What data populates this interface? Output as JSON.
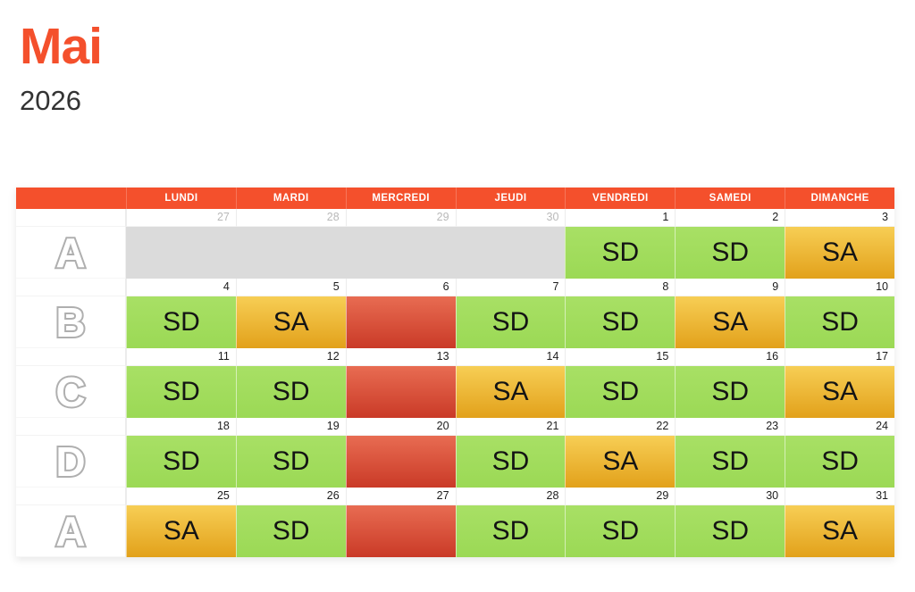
{
  "title": {
    "month": "Mai",
    "year": "2026"
  },
  "colors": {
    "accent": "#F4502C",
    "shift_day_green": "#A0DC5C",
    "shift_sa_gold_top": "#F7CE55",
    "shift_sa_gold_bottom": "#E2A11B",
    "off_red_top": "#E86C52",
    "off_red_bottom": "#CA3A27",
    "out_of_month_gray": "#DBDBDB"
  },
  "calendar": {
    "day_headers": [
      "LUNDI",
      "MARDI",
      "MERCREDI",
      "JEUDI",
      "VENDREDI",
      "SAMEDI",
      "DIMANCHE"
    ],
    "weeks": [
      {
        "letter": "A",
        "days": [
          {
            "date": "27",
            "out": true,
            "type": "gray",
            "label": ""
          },
          {
            "date": "28",
            "out": true,
            "type": "gray",
            "label": ""
          },
          {
            "date": "29",
            "out": true,
            "type": "gray",
            "label": ""
          },
          {
            "date": "30",
            "out": true,
            "type": "gray",
            "label": ""
          },
          {
            "date": "1",
            "out": false,
            "type": "sd",
            "label": "SD"
          },
          {
            "date": "2",
            "out": false,
            "type": "sd",
            "label": "SD"
          },
          {
            "date": "3",
            "out": false,
            "type": "sa",
            "label": "SA"
          }
        ]
      },
      {
        "letter": "B",
        "days": [
          {
            "date": "4",
            "out": false,
            "type": "sd",
            "label": "SD"
          },
          {
            "date": "5",
            "out": false,
            "type": "sa",
            "label": "SA"
          },
          {
            "date": "6",
            "out": false,
            "type": "red",
            "label": ""
          },
          {
            "date": "7",
            "out": false,
            "type": "sd",
            "label": "SD"
          },
          {
            "date": "8",
            "out": false,
            "type": "sd",
            "label": "SD"
          },
          {
            "date": "9",
            "out": false,
            "type": "sa",
            "label": "SA"
          },
          {
            "date": "10",
            "out": false,
            "type": "sd",
            "label": "SD"
          }
        ]
      },
      {
        "letter": "C",
        "days": [
          {
            "date": "11",
            "out": false,
            "type": "sd",
            "label": "SD"
          },
          {
            "date": "12",
            "out": false,
            "type": "sd",
            "label": "SD"
          },
          {
            "date": "13",
            "out": false,
            "type": "red",
            "label": ""
          },
          {
            "date": "14",
            "out": false,
            "type": "sa",
            "label": "SA"
          },
          {
            "date": "15",
            "out": false,
            "type": "sd",
            "label": "SD"
          },
          {
            "date": "16",
            "out": false,
            "type": "sd",
            "label": "SD"
          },
          {
            "date": "17",
            "out": false,
            "type": "sa",
            "label": "SA"
          }
        ]
      },
      {
        "letter": "D",
        "days": [
          {
            "date": "18",
            "out": false,
            "type": "sd",
            "label": "SD"
          },
          {
            "date": "19",
            "out": false,
            "type": "sd",
            "label": "SD"
          },
          {
            "date": "20",
            "out": false,
            "type": "red",
            "label": ""
          },
          {
            "date": "21",
            "out": false,
            "type": "sd",
            "label": "SD"
          },
          {
            "date": "22",
            "out": false,
            "type": "sa",
            "label": "SA"
          },
          {
            "date": "23",
            "out": false,
            "type": "sd",
            "label": "SD"
          },
          {
            "date": "24",
            "out": false,
            "type": "sd",
            "label": "SD"
          }
        ]
      },
      {
        "letter": "A",
        "days": [
          {
            "date": "25",
            "out": false,
            "type": "sa",
            "label": "SA"
          },
          {
            "date": "26",
            "out": false,
            "type": "sd",
            "label": "SD"
          },
          {
            "date": "27",
            "out": false,
            "type": "red",
            "label": ""
          },
          {
            "date": "28",
            "out": false,
            "type": "sd",
            "label": "SD"
          },
          {
            "date": "29",
            "out": false,
            "type": "sd",
            "label": "SD"
          },
          {
            "date": "30",
            "out": false,
            "type": "sd",
            "label": "SD"
          },
          {
            "date": "31",
            "out": false,
            "type": "sa",
            "label": "SA"
          }
        ]
      }
    ]
  }
}
